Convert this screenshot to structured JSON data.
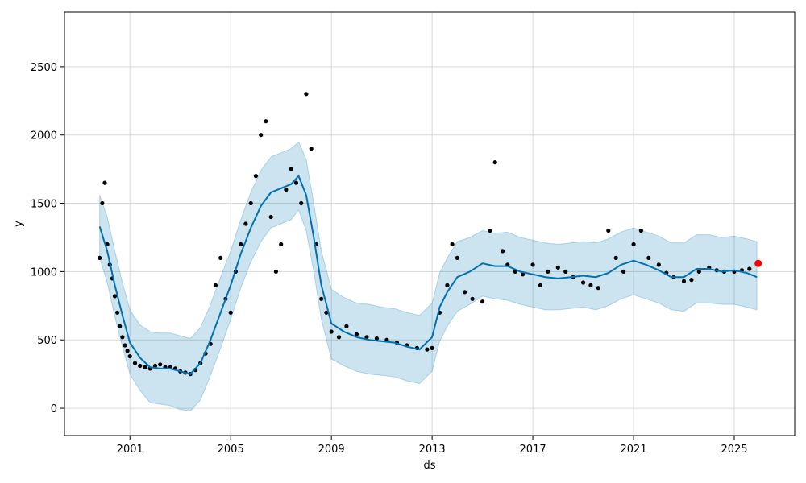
{
  "chart_data": {
    "type": "line",
    "title": "",
    "xlabel": "ds",
    "ylabel": "y",
    "xlim": [
      1998.4,
      2027.4
    ],
    "ylim": [
      -200,
      2900
    ],
    "x_ticks": [
      2001,
      2005,
      2009,
      2013,
      2017,
      2021,
      2025
    ],
    "x_tick_labels": [
      "2001",
      "2005",
      "2009",
      "2013",
      "2017",
      "2021",
      "2025"
    ],
    "y_ticks": [
      0,
      500,
      1000,
      1500,
      2000,
      2500
    ],
    "y_tick_labels": [
      "0",
      "500",
      "1000",
      "1500",
      "2000",
      "2500"
    ],
    "grid": true,
    "colors": {
      "forecast": "#0072B2",
      "interval": "#0072B2",
      "observed": "#000000",
      "latest": "#ff0000"
    },
    "series": [
      {
        "role": "forecast",
        "x": [
          1999.8,
          2000.1,
          2000.4,
          2000.7,
          2001.0,
          2001.4,
          2001.8,
          2002.2,
          2002.6,
          2003.0,
          2003.4,
          2003.8,
          2004.2,
          2004.6,
          2005.0,
          2005.4,
          2005.8,
          2006.2,
          2006.6,
          2007.0,
          2007.4,
          2007.7,
          2008.0,
          2008.3,
          2008.6,
          2009.0,
          2009.5,
          2010.0,
          2010.5,
          2011.0,
          2011.5,
          2012.0,
          2012.5,
          2013.0,
          2013.3,
          2013.6,
          2014.0,
          2014.5,
          2015.0,
          2015.5,
          2016.0,
          2016.5,
          2017.0,
          2017.5,
          2018.0,
          2018.5,
          2019.0,
          2019.5,
          2020.0,
          2020.5,
          2021.0,
          2021.5,
          2022.0,
          2022.5,
          2023.0,
          2023.5,
          2024.0,
          2024.5,
          2025.0,
          2025.5,
          2025.9
        ],
        "y": [
          1330,
          1150,
          900,
          680,
          480,
          370,
          300,
          290,
          290,
          270,
          250,
          330,
          500,
          700,
          900,
          1130,
          1320,
          1480,
          1580,
          1610,
          1640,
          1700,
          1560,
          1250,
          900,
          620,
          560,
          520,
          500,
          490,
          480,
          450,
          430,
          520,
          740,
          850,
          960,
          1000,
          1060,
          1040,
          1040,
          1000,
          980,
          960,
          950,
          960,
          970,
          960,
          990,
          1050,
          1080,
          1050,
          1010,
          960,
          960,
          1020,
          1020,
          1000,
          1010,
          990,
          960
        ]
      },
      {
        "role": "interval",
        "x": [
          1999.8,
          2000.1,
          2000.4,
          2000.7,
          2001.0,
          2001.4,
          2001.8,
          2002.2,
          2002.6,
          2003.0,
          2003.4,
          2003.8,
          2004.2,
          2004.6,
          2005.0,
          2005.4,
          2005.8,
          2006.2,
          2006.6,
          2007.0,
          2007.4,
          2007.7,
          2008.0,
          2008.3,
          2008.6,
          2009.0,
          2009.5,
          2010.0,
          2010.5,
          2011.0,
          2011.5,
          2012.0,
          2012.5,
          2013.0,
          2013.3,
          2013.6,
          2014.0,
          2014.5,
          2015.0,
          2015.5,
          2016.0,
          2016.5,
          2017.0,
          2017.5,
          2018.0,
          2018.5,
          2019.0,
          2019.5,
          2020.0,
          2020.5,
          2021.0,
          2021.5,
          2022.0,
          2022.5,
          2023.0,
          2023.5,
          2024.0,
          2024.5,
          2025.0,
          2025.5,
          2025.9
        ],
        "lower": [
          1100,
          920,
          670,
          450,
          250,
          130,
          40,
          30,
          20,
          -10,
          -20,
          60,
          240,
          440,
          650,
          880,
          1070,
          1220,
          1320,
          1350,
          1380,
          1450,
          1300,
          1000,
          650,
          360,
          310,
          270,
          250,
          240,
          230,
          200,
          180,
          270,
          490,
          600,
          710,
          760,
          820,
          800,
          790,
          760,
          740,
          720,
          720,
          730,
          740,
          720,
          750,
          800,
          830,
          800,
          770,
          720,
          710,
          770,
          770,
          760,
          760,
          740,
          720
        ],
        "upper": [
          1560,
          1400,
          1150,
          920,
          720,
          610,
          560,
          550,
          550,
          530,
          510,
          590,
          760,
          960,
          1150,
          1380,
          1580,
          1740,
          1840,
          1870,
          1900,
          1950,
          1820,
          1500,
          1150,
          870,
          810,
          770,
          760,
          740,
          730,
          700,
          680,
          770,
          990,
          1100,
          1220,
          1250,
          1300,
          1280,
          1290,
          1250,
          1230,
          1210,
          1200,
          1210,
          1220,
          1210,
          1240,
          1290,
          1320,
          1290,
          1260,
          1210,
          1210,
          1270,
          1270,
          1250,
          1260,
          1240,
          1220
        ]
      },
      {
        "role": "observed",
        "x": [
          1999.8,
          1999.9,
          2000.0,
          2000.1,
          2000.2,
          2000.3,
          2000.4,
          2000.5,
          2000.6,
          2000.7,
          2000.8,
          2000.9,
          2001.0,
          2001.2,
          2001.4,
          2001.6,
          2001.8,
          2002.0,
          2002.2,
          2002.4,
          2002.6,
          2002.8,
          2003.0,
          2003.2,
          2003.4,
          2003.6,
          2003.8,
          2004.0,
          2004.2,
          2004.4,
          2004.6,
          2004.8,
          2005.0,
          2005.2,
          2005.4,
          2005.6,
          2005.8,
          2006.0,
          2006.2,
          2006.4,
          2006.6,
          2006.8,
          2007.0,
          2007.2,
          2007.4,
          2007.6,
          2007.8,
          2008.0,
          2008.2,
          2008.4,
          2008.6,
          2008.8,
          2009.0,
          2009.3,
          2009.6,
          2010.0,
          2010.4,
          2010.8,
          2011.2,
          2011.6,
          2012.0,
          2012.4,
          2012.8,
          2013.0,
          2013.3,
          2013.6,
          2013.8,
          2014.0,
          2014.3,
          2014.6,
          2015.0,
          2015.3,
          2015.5,
          2015.8,
          2016.0,
          2016.3,
          2016.6,
          2017.0,
          2017.3,
          2017.6,
          2018.0,
          2018.3,
          2018.6,
          2019.0,
          2019.3,
          2019.6,
          2020.0,
          2020.3,
          2020.6,
          2021.0,
          2021.3,
          2021.6,
          2022.0,
          2022.3,
          2022.6,
          2023.0,
          2023.3,
          2023.6,
          2024.0,
          2024.3,
          2024.6,
          2025.0,
          2025.3,
          2025.6
        ],
        "y": [
          1100,
          1500,
          1650,
          1200,
          1050,
          950,
          820,
          700,
          600,
          520,
          460,
          420,
          380,
          330,
          310,
          300,
          290,
          310,
          320,
          300,
          300,
          290,
          270,
          260,
          250,
          280,
          330,
          400,
          470,
          900,
          1100,
          800,
          700,
          1000,
          1200,
          1350,
          1500,
          1700,
          2000,
          2100,
          1400,
          1000,
          1200,
          1600,
          1750,
          1650,
          1500,
          2300,
          1900,
          1200,
          800,
          700,
          560,
          520,
          600,
          540,
          520,
          510,
          500,
          480,
          460,
          440,
          430,
          440,
          700,
          900,
          1200,
          1100,
          850,
          800,
          780,
          1300,
          1800,
          1150,
          1050,
          1000,
          980,
          1050,
          900,
          1000,
          1030,
          1000,
          960,
          920,
          900,
          880,
          1300,
          1100,
          1000,
          1200,
          1300,
          1100,
          1050,
          990,
          960,
          930,
          940,
          1000,
          1030,
          1010,
          1000,
          1000,
          1010,
          1020
        ]
      },
      {
        "role": "latest",
        "x": [
          2025.95
        ],
        "y": [
          1060
        ]
      }
    ]
  }
}
